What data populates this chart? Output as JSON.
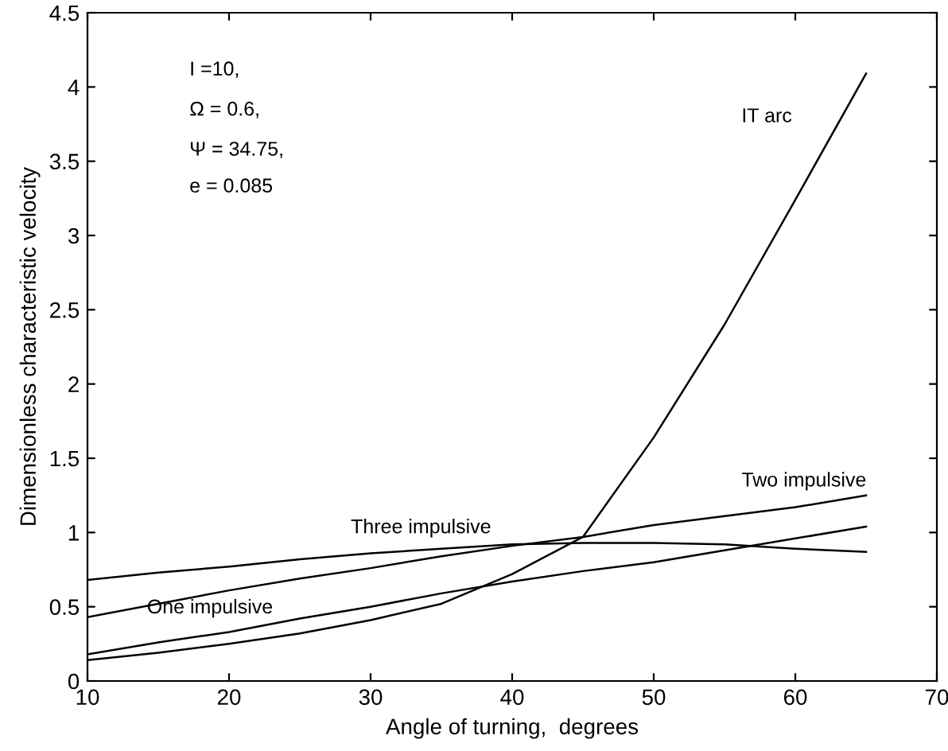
{
  "chart_data": {
    "type": "line",
    "xlabel": "Angle of turning,  degrees",
    "ylabel": "Dimensionless characteristic velocity",
    "x": [
      10,
      15,
      20,
      25,
      30,
      35,
      40,
      45,
      50,
      55,
      60,
      65
    ],
    "series": [
      {
        "color": "#000000",
        "values": [
          0.14,
          0.19,
          0.25,
          0.32,
          0.41,
          0.52,
          0.72,
          0.97,
          1.64,
          2.4,
          3.24,
          4.09
        ]
      },
      {
        "color": "#000000",
        "values": [
          0.43,
          0.52,
          0.61,
          0.69,
          0.76,
          0.84,
          0.91,
          0.97,
          1.05,
          1.11,
          1.17,
          1.25
        ]
      },
      {
        "color": "#000000",
        "values": [
          0.18,
          0.26,
          0.33,
          0.42,
          0.5,
          0.59,
          0.67,
          0.74,
          0.8,
          0.88,
          0.96,
          1.04
        ]
      },
      {
        "color": "#000000",
        "values": [
          0.68,
          0.73,
          0.77,
          0.82,
          0.86,
          0.89,
          0.92,
          0.93,
          0.93,
          0.92,
          0.89,
          0.87
        ]
      }
    ],
    "xlim": [
      10,
      70
    ],
    "xticks": [
      10,
      20,
      30,
      40,
      50,
      60,
      70
    ],
    "ylim": [
      0,
      4.5
    ],
    "yticks": [
      0,
      0.5,
      1,
      1.5,
      2,
      2.5,
      3,
      3.5,
      4,
      4.5
    ],
    "grid": false,
    "legend": false,
    "marker": "none",
    "line_style": "solid",
    "annotations": [
      "IT arc",
      "Two impulsive",
      "Three impulsive",
      "One impulsive",
      "I =10,",
      "Ω = 0.6,",
      "Ψ = 34.75,",
      "e = 0.085"
    ]
  }
}
